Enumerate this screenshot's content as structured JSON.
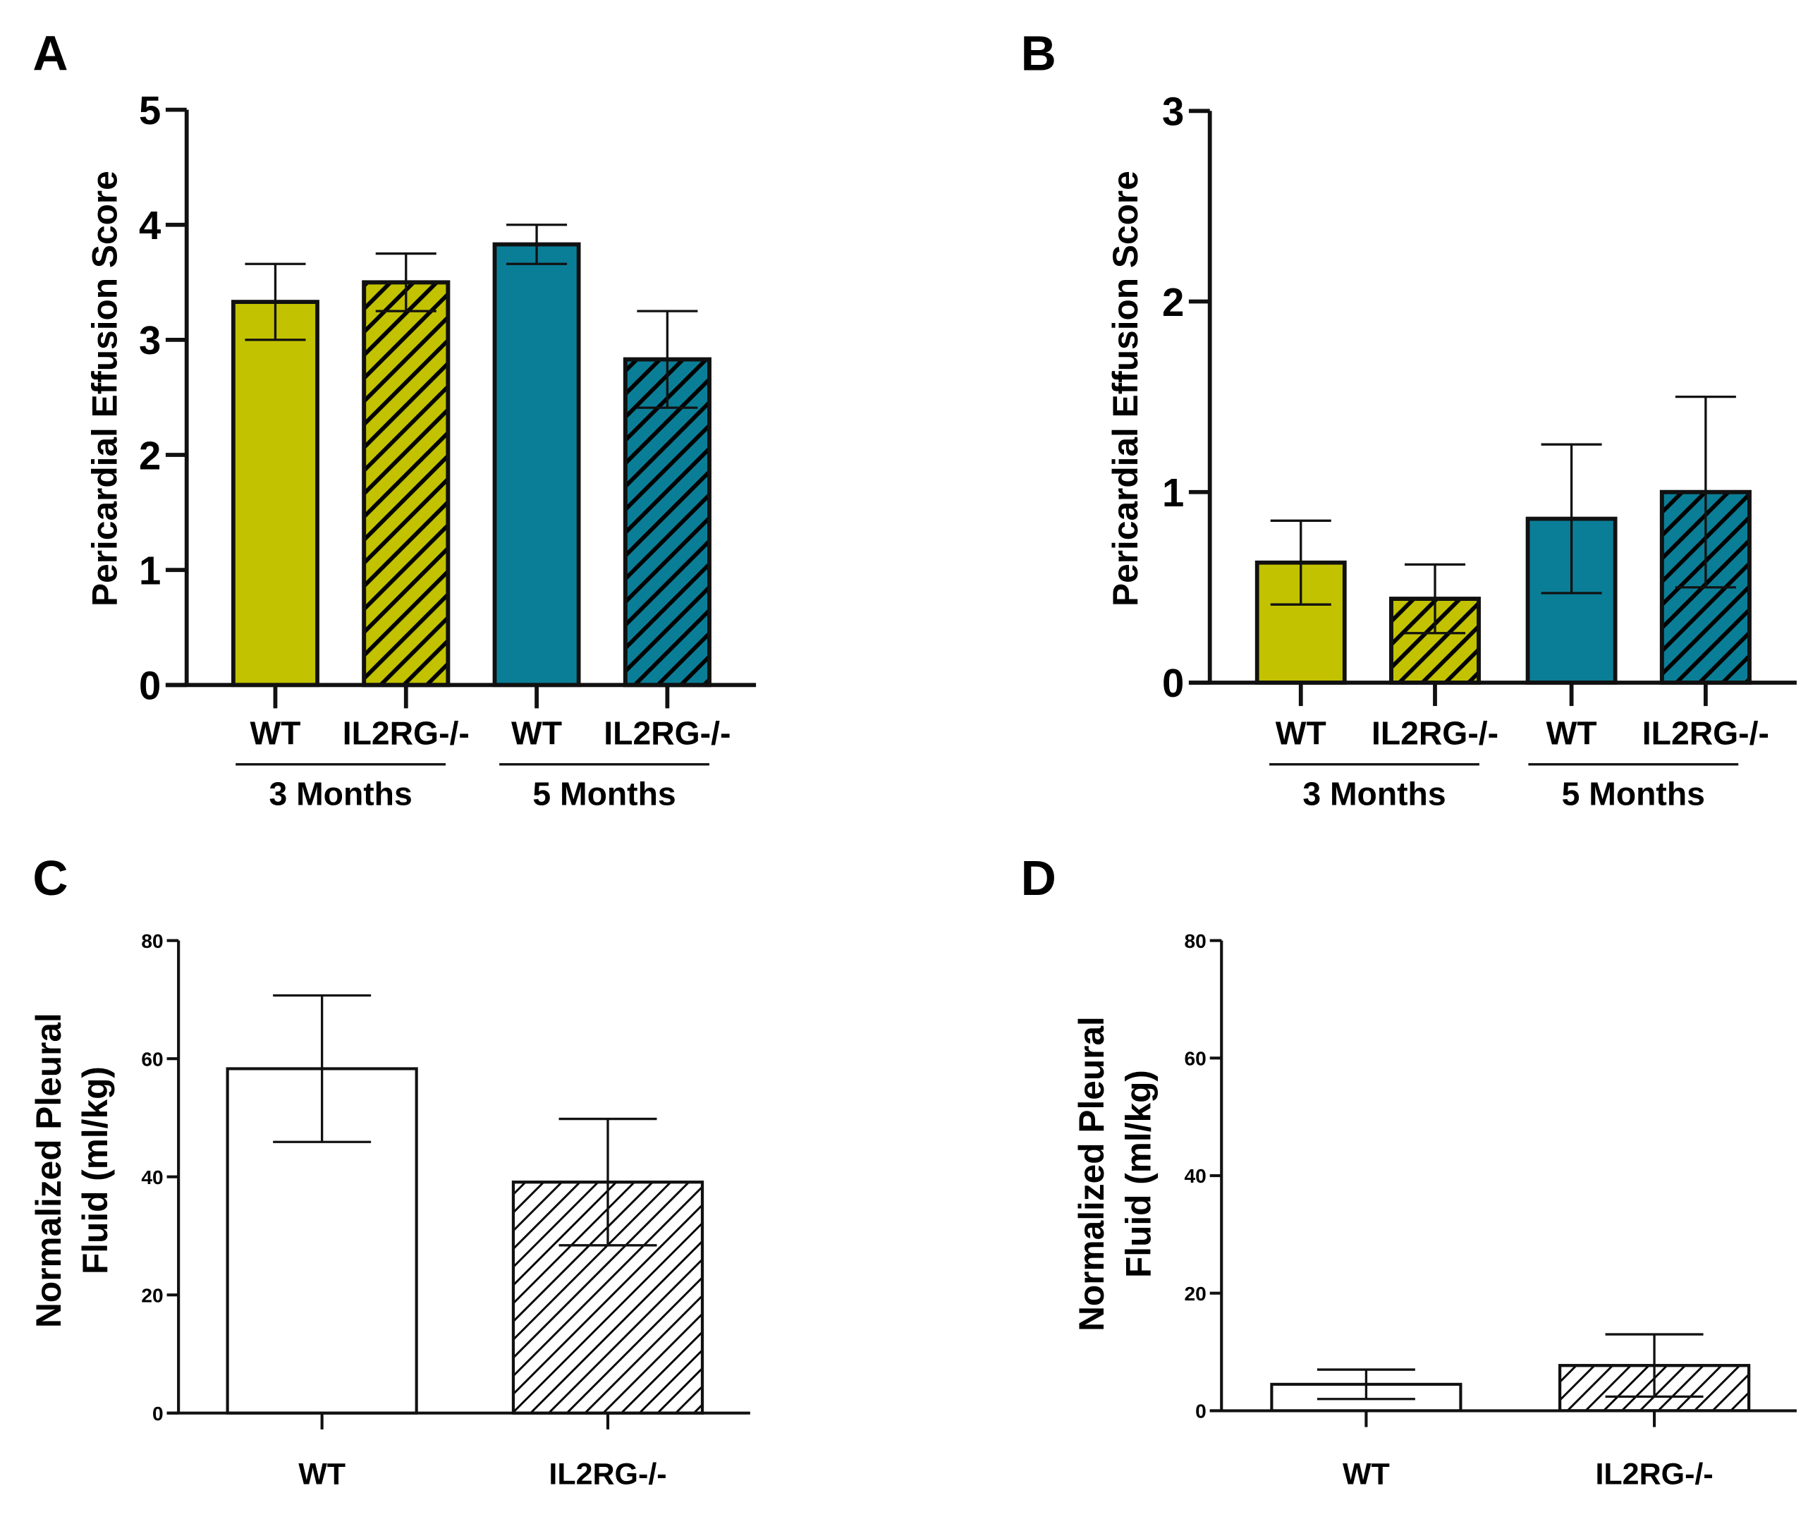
{
  "colors": {
    "yellow": "#c2c200",
    "teal": "#0b7e97",
    "white": "#ffffff",
    "black": "#000000"
  },
  "chart_data": [
    {
      "panel": "A",
      "type": "bar",
      "ylabel": "Pericardial Effusion Score",
      "ylim": [
        0,
        5
      ],
      "yticks": [
        "0",
        "1",
        "2",
        "3",
        "4",
        "5"
      ],
      "categories": [
        "WT",
        "IL2RG-/-",
        "WT",
        "IL2RG-/-"
      ],
      "groups": [
        "3 Months",
        "5 Months"
      ],
      "values": [
        3.33,
        3.5,
        3.83,
        2.83
      ],
      "errors": [
        0.33,
        0.25,
        0.17,
        0.42
      ],
      "fills": [
        "yellow",
        "yellow",
        "teal",
        "teal"
      ],
      "hatched": [
        false,
        true,
        false,
        true
      ]
    },
    {
      "panel": "B",
      "type": "bar",
      "ylabel": "Pericardial Effusion Score",
      "ylim": [
        0,
        3
      ],
      "yticks": [
        "0",
        "1",
        "2",
        "3"
      ],
      "categories": [
        "WT",
        "IL2RG-/-",
        "WT",
        "IL2RG-/-"
      ],
      "groups": [
        "3 Months",
        "5 Months"
      ],
      "values": [
        0.63,
        0.44,
        0.86,
        1.0
      ],
      "errors": [
        0.22,
        0.18,
        0.39,
        0.5
      ],
      "fills": [
        "yellow",
        "yellow",
        "teal",
        "teal"
      ],
      "hatched": [
        false,
        true,
        false,
        true
      ]
    },
    {
      "panel": "C",
      "type": "bar",
      "ylabel": [
        "Normalized Pleural",
        "Fluid (ml/kg)"
      ],
      "ylim": [
        0,
        80
      ],
      "yticks": [
        "0",
        "20",
        "40",
        "60",
        "80"
      ],
      "categories": [
        "WT",
        "IL2RG-/-"
      ],
      "values": [
        58.3,
        39.1
      ],
      "errors": [
        12.4,
        10.7
      ],
      "fills": [
        "white",
        "white"
      ],
      "hatched": [
        false,
        true
      ]
    },
    {
      "panel": "D",
      "type": "bar",
      "ylabel": [
        "Normalized Pleural",
        "Fluid (ml/kg)"
      ],
      "ylim": [
        0,
        80
      ],
      "yticks": [
        "0",
        "20",
        "40",
        "60",
        "80"
      ],
      "categories": [
        "WT",
        "IL2RG-/-"
      ],
      "values": [
        4.5,
        7.7
      ],
      "errors": [
        2.5,
        5.3
      ],
      "fills": [
        "white",
        "white"
      ],
      "hatched": [
        false,
        true
      ]
    }
  ]
}
